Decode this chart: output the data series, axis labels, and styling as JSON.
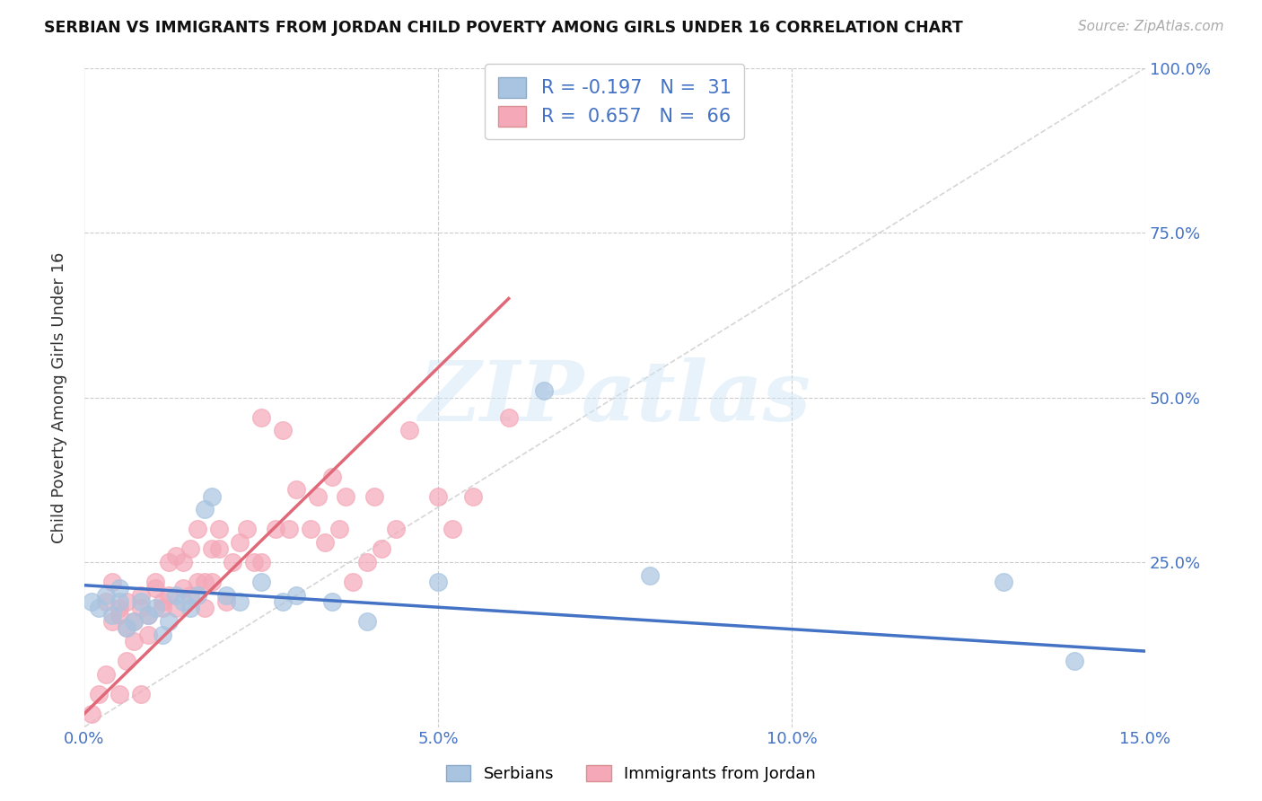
{
  "title": "SERBIAN VS IMMIGRANTS FROM JORDAN CHILD POVERTY AMONG GIRLS UNDER 16 CORRELATION CHART",
  "source": "Source: ZipAtlas.com",
  "ylabel": "Child Poverty Among Girls Under 16",
  "xlim": [
    0.0,
    0.15
  ],
  "ylim": [
    0.0,
    1.0
  ],
  "background_color": "#ffffff",
  "grid_color": "#cccccc",
  "watermark_text": "ZIPatlas",
  "legend_R_serbian": "-0.197",
  "legend_N_serbian": "31",
  "legend_R_jordan": "0.657",
  "legend_N_jordan": "66",
  "serbian_color": "#a8c4e0",
  "jordan_color": "#f4a8b8",
  "serbian_line_color": "#4472c4",
  "jordan_line_color": "#e06878",
  "diagonal_color": "#cccccc",
  "serbian_scatter_x": [
    0.001,
    0.002,
    0.003,
    0.004,
    0.005,
    0.005,
    0.006,
    0.007,
    0.008,
    0.009,
    0.01,
    0.011,
    0.012,
    0.013,
    0.014,
    0.015,
    0.016,
    0.017,
    0.018,
    0.02,
    0.022,
    0.025,
    0.028,
    0.03,
    0.035,
    0.04,
    0.05,
    0.065,
    0.08,
    0.13,
    0.14
  ],
  "serbian_scatter_y": [
    0.19,
    0.18,
    0.2,
    0.17,
    0.19,
    0.21,
    0.15,
    0.16,
    0.19,
    0.17,
    0.18,
    0.14,
    0.16,
    0.2,
    0.19,
    0.18,
    0.2,
    0.33,
    0.35,
    0.2,
    0.19,
    0.22,
    0.19,
    0.2,
    0.19,
    0.16,
    0.22,
    0.51,
    0.23,
    0.22,
    0.1
  ],
  "jordan_scatter_x": [
    0.001,
    0.002,
    0.003,
    0.003,
    0.004,
    0.004,
    0.005,
    0.005,
    0.005,
    0.006,
    0.006,
    0.006,
    0.007,
    0.007,
    0.008,
    0.008,
    0.008,
    0.009,
    0.009,
    0.01,
    0.01,
    0.011,
    0.011,
    0.012,
    0.012,
    0.013,
    0.013,
    0.014,
    0.014,
    0.015,
    0.015,
    0.016,
    0.016,
    0.017,
    0.017,
    0.018,
    0.018,
    0.019,
    0.019,
    0.02,
    0.021,
    0.022,
    0.023,
    0.024,
    0.025,
    0.025,
    0.027,
    0.028,
    0.029,
    0.03,
    0.032,
    0.033,
    0.034,
    0.035,
    0.036,
    0.037,
    0.038,
    0.04,
    0.041,
    0.042,
    0.044,
    0.046,
    0.05,
    0.052,
    0.055,
    0.06
  ],
  "jordan_scatter_y": [
    0.02,
    0.05,
    0.08,
    0.19,
    0.16,
    0.22,
    0.18,
    0.17,
    0.05,
    0.19,
    0.15,
    0.1,
    0.13,
    0.16,
    0.2,
    0.18,
    0.05,
    0.14,
    0.17,
    0.22,
    0.21,
    0.19,
    0.18,
    0.25,
    0.2,
    0.18,
    0.26,
    0.25,
    0.21,
    0.2,
    0.27,
    0.22,
    0.3,
    0.18,
    0.22,
    0.27,
    0.22,
    0.3,
    0.27,
    0.19,
    0.25,
    0.28,
    0.3,
    0.25,
    0.25,
    0.47,
    0.3,
    0.45,
    0.3,
    0.36,
    0.3,
    0.35,
    0.28,
    0.38,
    0.3,
    0.35,
    0.22,
    0.25,
    0.35,
    0.27,
    0.3,
    0.45,
    0.35,
    0.3,
    0.35,
    0.47
  ],
  "jordan_regline_x": [
    0.0,
    0.06
  ],
  "jordan_regline_y": [
    0.02,
    0.65
  ],
  "serbian_regline_x": [
    0.0,
    0.15
  ],
  "serbian_regline_y": [
    0.215,
    0.115
  ]
}
